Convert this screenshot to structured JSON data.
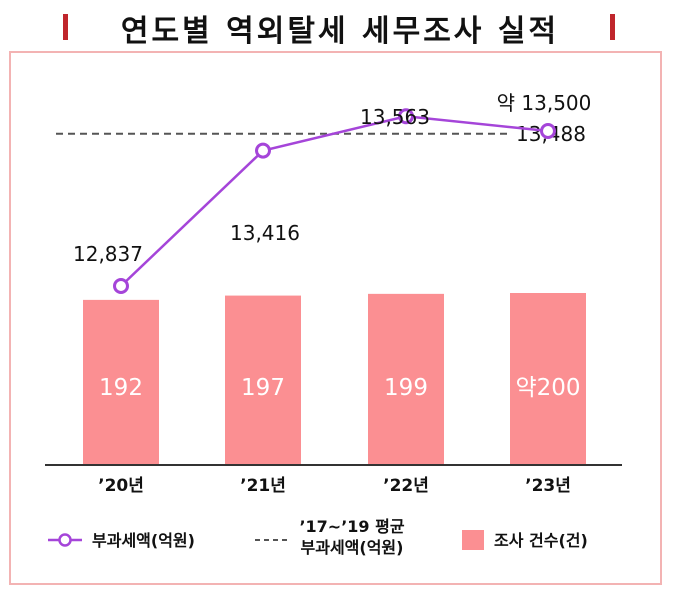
{
  "title": "연도별 역외탈세 세무조사 실적",
  "colors": {
    "bar": "#fb8f92",
    "line": "#a545d9",
    "title_accent": "#c0262c",
    "frame": "#f3b3b3",
    "dashed": "#555555"
  },
  "chart_data": {
    "type": "bar",
    "categories": [
      "’20년",
      "’21년",
      "’22년",
      "’23년"
    ],
    "series": [
      {
        "name": "조사 건수(건)",
        "type": "bar",
        "values": [
          192,
          197,
          199,
          200
        ],
        "labels": [
          "192",
          "197",
          "199",
          "약200"
        ]
      },
      {
        "name": "부과세액(억원)",
        "type": "line",
        "values": [
          12837,
          13416,
          13563,
          13500
        ],
        "labels": [
          "12,837",
          "13,416",
          "13,563",
          "약 13,500"
        ]
      }
    ],
    "reference_line": {
      "name": "’17~’19 평균\n부과세액(억원)",
      "value": 13488,
      "label": "13,488"
    },
    "legend": {
      "line": "부과세액(억원)",
      "dashed_line1": "’17~’19 평균",
      "dashed_line2": "부과세액(억원)",
      "bar": "조사 건수(건)"
    }
  }
}
